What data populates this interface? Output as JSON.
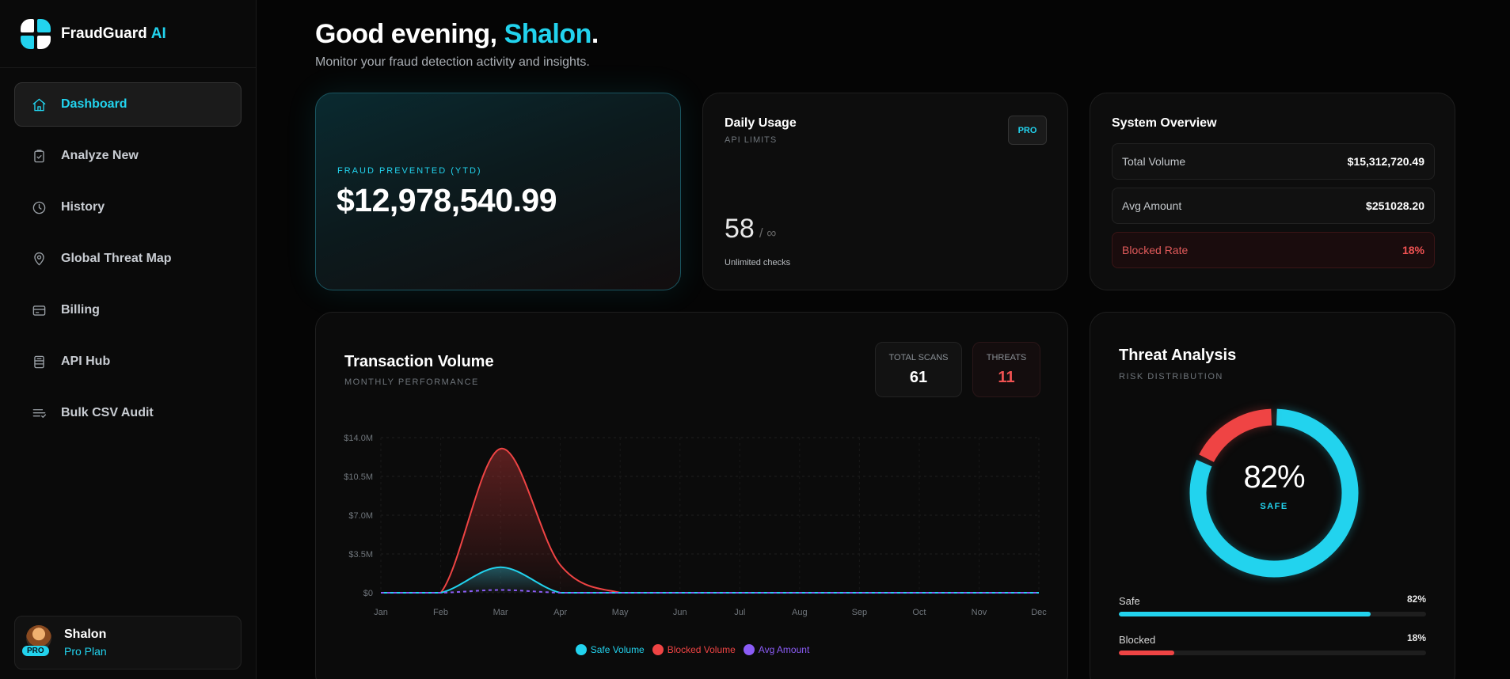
{
  "brand": {
    "name": "FraudGuard",
    "suffix": "AI"
  },
  "nav": [
    {
      "label": "Dashboard",
      "icon": "home-icon",
      "active": true
    },
    {
      "label": "Analyze New",
      "icon": "clipboard-check-icon"
    },
    {
      "label": "History",
      "icon": "clock-icon"
    },
    {
      "label": "Global Threat Map",
      "icon": "map-pin-icon"
    },
    {
      "label": "Billing",
      "icon": "credit-card-icon"
    },
    {
      "label": "API Hub",
      "icon": "server-icon"
    },
    {
      "label": "Bulk CSV Audit",
      "icon": "list-filter-icon"
    }
  ],
  "user": {
    "name": "Shalon",
    "plan": "Pro Plan",
    "badge": "PRO"
  },
  "header": {
    "greeting": "Good evening,",
    "name": "Shalon",
    "punct": ".",
    "subtitle": "Monitor your fraud detection activity and insights."
  },
  "fraud": {
    "label": "FRAUD PREVENTED (YTD)",
    "value": "$12,978,540.99"
  },
  "usage": {
    "title": "Daily Usage",
    "subtitle": "API LIMITS",
    "tag": "PRO",
    "count": "58",
    "limit": "/ ∞",
    "note": "Unlimited checks"
  },
  "system": {
    "title": "System Overview",
    "rows": [
      {
        "label": "Total Volume",
        "value": "$15,312,720.49"
      },
      {
        "label": "Avg Amount",
        "value": "$251028.20"
      },
      {
        "label": "Blocked Rate",
        "value": "18%"
      }
    ]
  },
  "transactions": {
    "title": "Transaction Volume",
    "subtitle": "MONTHLY PERFORMANCE",
    "scans_label": "TOTAL SCANS",
    "scans_value": "61",
    "threats_label": "THREATS",
    "threats_value": "11"
  },
  "chart_data": {
    "type": "area",
    "x": [
      "Jan",
      "Feb",
      "Mar",
      "Apr",
      "May",
      "Jun",
      "Jul",
      "Aug",
      "Sep",
      "Oct",
      "Nov",
      "Dec"
    ],
    "y_ticks": [
      "$0",
      "$3.5M",
      "$7.0M",
      "$10.5M",
      "$14.0M"
    ],
    "ylim": [
      0,
      14000000
    ],
    "series": [
      {
        "name": "Safe Volume",
        "color": "#22d3ee",
        "values": [
          0,
          0,
          2300000,
          0,
          0,
          0,
          0,
          0,
          0,
          0,
          0,
          0
        ]
      },
      {
        "name": "Blocked Volume",
        "color": "#ef4444",
        "values": [
          0,
          0,
          13000000,
          2500000,
          0,
          0,
          0,
          0,
          0,
          0,
          0,
          0
        ]
      },
      {
        "name": "Avg Amount",
        "color": "#8b5cf6",
        "values": [
          0,
          0,
          250000,
          0,
          0,
          0,
          0,
          0,
          0,
          0,
          0,
          0
        ]
      }
    ],
    "legend": "bottom-center",
    "grid": true
  },
  "threat": {
    "title": "Threat Analysis",
    "subtitle": "RISK DISTRIBUTION",
    "safe_pct": 82,
    "blocked_pct": 18,
    "center_value": "82%",
    "center_label": "SAFE",
    "bars": [
      {
        "label": "Safe",
        "value_text": "82%",
        "fraction": 0.82,
        "color": "#22d3ee"
      },
      {
        "label": "Blocked",
        "value_text": "18%",
        "fraction": 0.18,
        "color": "#ef4444"
      }
    ]
  }
}
